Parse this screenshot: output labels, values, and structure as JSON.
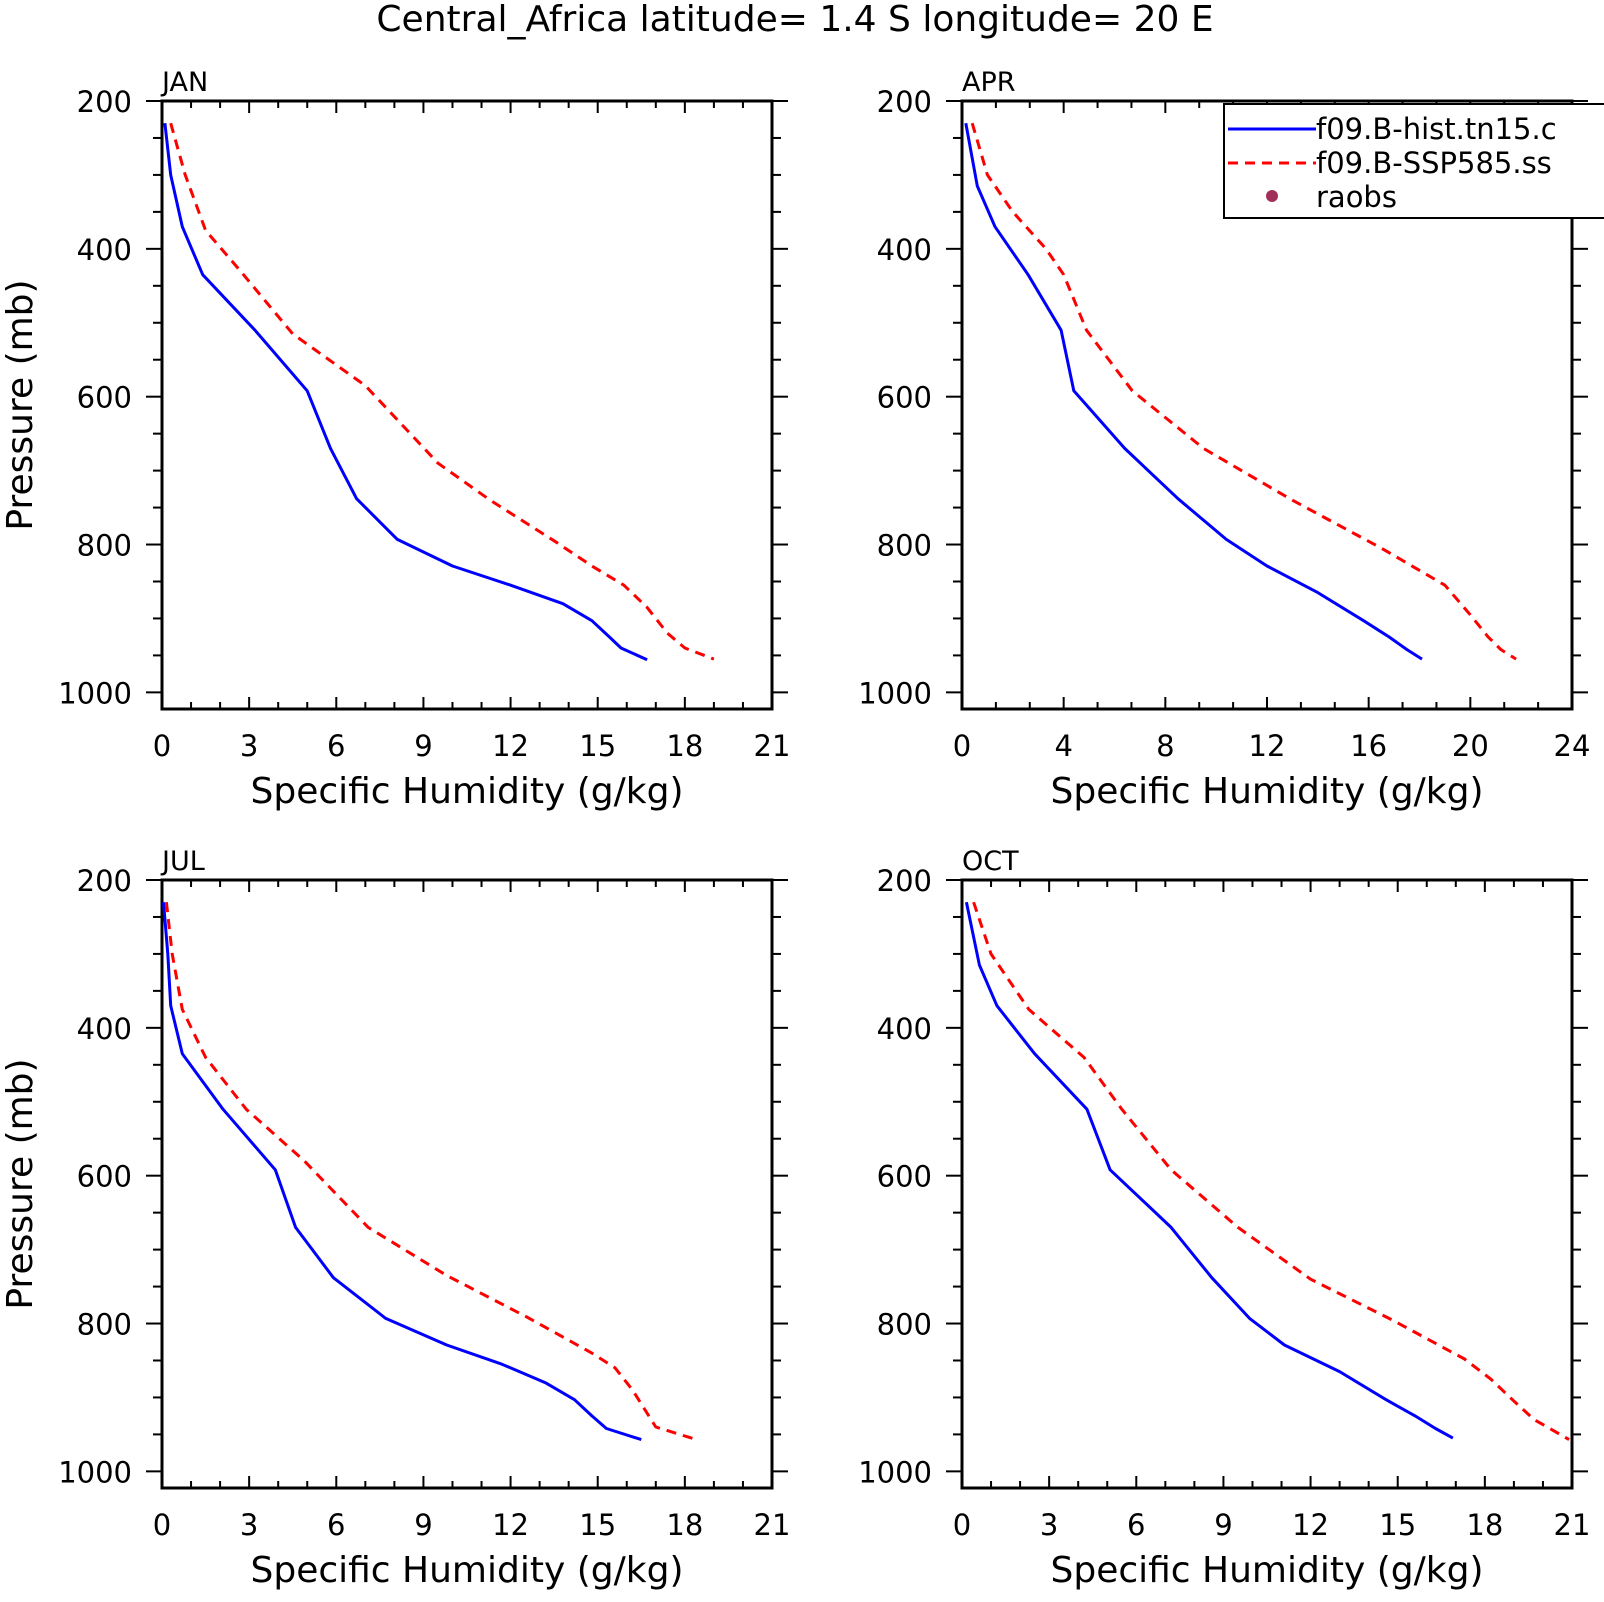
{
  "title": "Central_Africa  latitude= 1.4 S longitude= 20 E",
  "legend": {
    "placement": "top-right",
    "entries": [
      {
        "label": "f09.B-hist.tn15.c",
        "color": "#0000ff",
        "style": "solid"
      },
      {
        "label": "f09.B-SSP585.ss",
        "color": "#ff0000",
        "style": "dashed"
      },
      {
        "label": "raobs",
        "color": "#a0305a",
        "style": "marker"
      }
    ]
  },
  "chart_data": [
    {
      "type": "line",
      "panel": "JAN",
      "xlabel": "Specific Humidity (g/kg)",
      "ylabel": "Pressure (mb)",
      "xlim": [
        0,
        21
      ],
      "ylim": [
        1000,
        200
      ],
      "xticks": [
        0,
        3,
        6,
        9,
        12,
        15,
        18,
        21
      ],
      "yticks": [
        200,
        400,
        600,
        800,
        1000
      ],
      "y_inverted": true,
      "series": [
        {
          "name": "f09.B-hist.tn15.c",
          "color": "#0000ff",
          "dash": "solid",
          "x": [
            0.1,
            0.3,
            0.7,
            1.4,
            3.2,
            5.0,
            5.8,
            6.7,
            8.1,
            10.0,
            12.0,
            13.8,
            14.8,
            15.4,
            15.8,
            16.7
          ],
          "y": [
            230,
            300,
            370,
            435,
            510,
            592,
            670,
            738,
            793,
            829,
            855,
            880,
            903,
            925,
            940,
            956
          ]
        },
        {
          "name": "f09.B-SSP585.ss",
          "color": "#ff0000",
          "dash": "dashed",
          "x": [
            0.3,
            0.8,
            1.5,
            2.7,
            4.5,
            7.0,
            9.5,
            11.3,
            13.5,
            14.8,
            15.9,
            16.7,
            17.4,
            18.0,
            19.0
          ],
          "y": [
            230,
            300,
            375,
            430,
            515,
            585,
            690,
            740,
            795,
            829,
            855,
            885,
            920,
            940,
            955
          ]
        }
      ]
    },
    {
      "type": "line",
      "panel": "APR",
      "xlabel": "Specific Humidity (g/kg)",
      "ylabel": "",
      "xlim": [
        0,
        24
      ],
      "ylim": [
        1000,
        200
      ],
      "xticks": [
        0,
        4,
        8,
        12,
        16,
        20,
        24
      ],
      "yticks": [
        200,
        400,
        600,
        800,
        1000
      ],
      "y_inverted": true,
      "series": [
        {
          "name": "f09.B-hist.tn15.c",
          "color": "#0000ff",
          "dash": "solid",
          "x": [
            0.15,
            0.6,
            1.3,
            2.6,
            3.9,
            4.4,
            6.4,
            8.5,
            10.4,
            12.0,
            14.0,
            15.8,
            16.8,
            17.5,
            18.1
          ],
          "y": [
            230,
            315,
            370,
            435,
            510,
            592,
            670,
            738,
            793,
            829,
            865,
            903,
            925,
            942,
            955
          ]
        },
        {
          "name": "f09.B-SSP585.ss",
          "color": "#ff0000",
          "dash": "dashed",
          "x": [
            0.4,
            1.0,
            2.0,
            3.3,
            4.0,
            4.9,
            6.7,
            9.5,
            13.0,
            16.5,
            19.0,
            20.0,
            20.7,
            21.2,
            21.8
          ],
          "y": [
            230,
            300,
            350,
            400,
            435,
            510,
            592,
            670,
            740,
            805,
            855,
            895,
            925,
            942,
            955
          ]
        }
      ]
    },
    {
      "type": "line",
      "panel": "JUL",
      "xlabel": "Specific Humidity (g/kg)",
      "ylabel": "Pressure (mb)",
      "xlim": [
        0,
        21
      ],
      "ylim": [
        1000,
        200
      ],
      "xticks": [
        0,
        3,
        6,
        9,
        12,
        15,
        18,
        21
      ],
      "yticks": [
        200,
        400,
        600,
        800,
        1000
      ],
      "y_inverted": true,
      "series": [
        {
          "name": "f09.B-hist.tn15.c",
          "color": "#0000ff",
          "dash": "solid",
          "x": [
            0.05,
            0.2,
            0.3,
            0.7,
            2.1,
            3.9,
            4.6,
            5.9,
            7.7,
            9.8,
            11.7,
            13.2,
            14.2,
            14.8,
            15.3,
            16.5
          ],
          "y": [
            230,
            300,
            370,
            435,
            510,
            592,
            670,
            738,
            793,
            829,
            855,
            880,
            903,
            925,
            942,
            957
          ]
        },
        {
          "name": "f09.B-SSP585.ss",
          "color": "#ff0000",
          "dash": "dashed",
          "x": [
            0.15,
            0.35,
            0.7,
            1.5,
            2.9,
            4.9,
            7.1,
            9.8,
            12.5,
            14.8,
            15.6,
            16.2,
            17.0,
            18.4
          ],
          "y": [
            230,
            300,
            375,
            440,
            510,
            580,
            670,
            735,
            790,
            840,
            860,
            890,
            940,
            957
          ]
        }
      ]
    },
    {
      "type": "line",
      "panel": "OCT",
      "xlabel": "Specific Humidity (g/kg)",
      "ylabel": "",
      "xlim": [
        0,
        21
      ],
      "ylim": [
        1000,
        200
      ],
      "xticks": [
        0,
        3,
        6,
        9,
        12,
        15,
        18,
        21
      ],
      "yticks": [
        200,
        400,
        600,
        800,
        1000
      ],
      "y_inverted": true,
      "series": [
        {
          "name": "f09.B-hist.tn15.c",
          "color": "#0000ff",
          "dash": "solid",
          "x": [
            0.15,
            0.6,
            1.2,
            2.5,
            4.3,
            5.1,
            7.2,
            8.6,
            9.9,
            11.1,
            13.0,
            14.6,
            15.6,
            16.3,
            16.9
          ],
          "y": [
            230,
            315,
            370,
            435,
            510,
            592,
            670,
            738,
            793,
            829,
            865,
            903,
            925,
            942,
            955
          ]
        },
        {
          "name": "f09.B-SSP585.ss",
          "color": "#ff0000",
          "dash": "dashed",
          "x": [
            0.4,
            1.0,
            2.3,
            4.2,
            5.5,
            7.2,
            9.5,
            12.0,
            14.8,
            17.3,
            18.2,
            19.0,
            19.7,
            20.9
          ],
          "y": [
            230,
            300,
            375,
            440,
            510,
            592,
            670,
            740,
            795,
            848,
            875,
            905,
            930,
            957
          ]
        }
      ]
    }
  ]
}
